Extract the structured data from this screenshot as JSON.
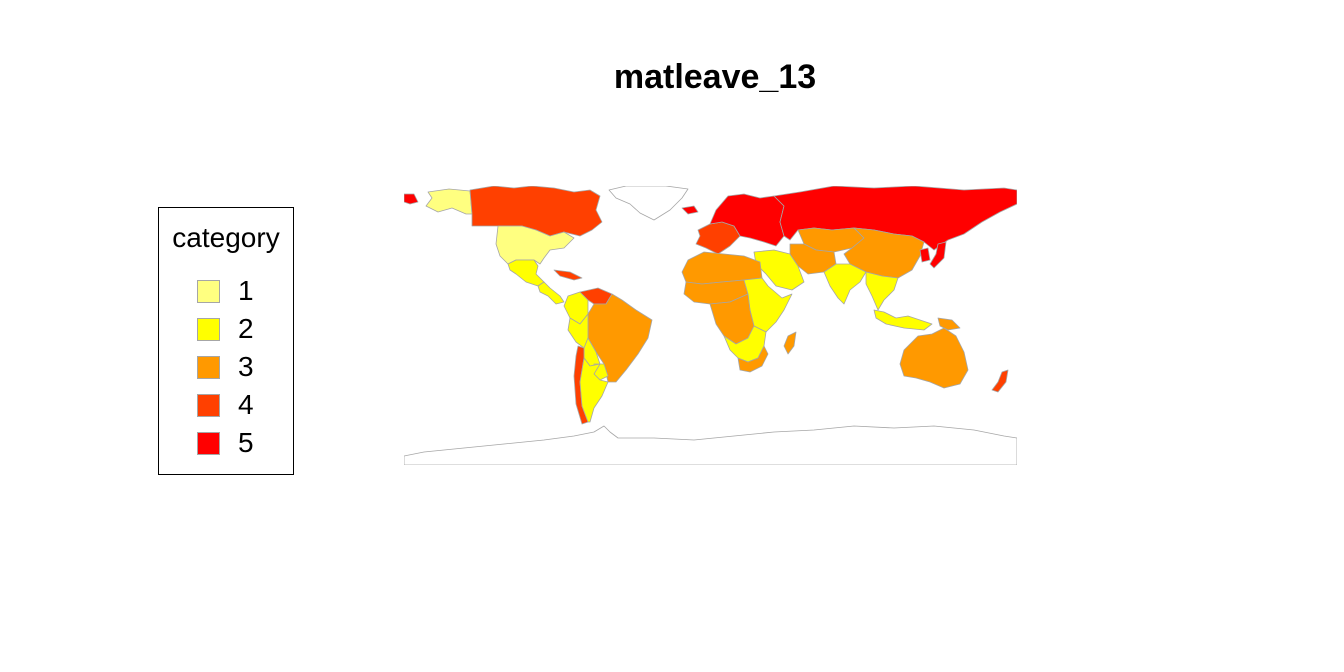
{
  "title": "matleave_13",
  "legend": {
    "title": "category",
    "items": [
      {
        "label": "1",
        "color": "#FFFF80"
      },
      {
        "label": "2",
        "color": "#FFFF00"
      },
      {
        "label": "3",
        "color": "#FF9900"
      },
      {
        "label": "4",
        "color": "#FF4000"
      },
      {
        "label": "5",
        "color": "#FF0000"
      }
    ]
  },
  "map_data": {
    "type": "choropleth",
    "projection": "equirectangular",
    "border_color": "#A6A6A6",
    "no_data_color": "#FFFFFF",
    "regions": [
      {
        "name": "greenland",
        "category": null
      },
      {
        "name": "alaska",
        "category": 1
      },
      {
        "name": "canada",
        "category": 4
      },
      {
        "name": "usa",
        "category": 1
      },
      {
        "name": "mexico",
        "category": 2
      },
      {
        "name": "central-america",
        "category": 2
      },
      {
        "name": "caribbean",
        "category": 4
      },
      {
        "name": "venezuela",
        "category": 4
      },
      {
        "name": "colombia",
        "category": 2
      },
      {
        "name": "brazil",
        "category": 3
      },
      {
        "name": "peru",
        "category": 2
      },
      {
        "name": "bolivia",
        "category": 2
      },
      {
        "name": "paraguay",
        "category": 2
      },
      {
        "name": "chile",
        "category": 4
      },
      {
        "name": "argentina",
        "category": 2
      },
      {
        "name": "iceland",
        "category": 5
      },
      {
        "name": "western-europe",
        "category": 4
      },
      {
        "name": "northern-europe",
        "category": 5
      },
      {
        "name": "russia",
        "category": 5
      },
      {
        "name": "kazakhstan",
        "category": 3
      },
      {
        "name": "china",
        "category": 3
      },
      {
        "name": "japan",
        "category": 5
      },
      {
        "name": "korea",
        "category": 5
      },
      {
        "name": "middle-east",
        "category": 2
      },
      {
        "name": "iran",
        "category": 3
      },
      {
        "name": "india",
        "category": 2
      },
      {
        "name": "southeast-asia",
        "category": 2
      },
      {
        "name": "indonesia",
        "category": 2
      },
      {
        "name": "papua-new-guinea",
        "category": 3
      },
      {
        "name": "north-africa",
        "category": 3
      },
      {
        "name": "sahel",
        "category": 3
      },
      {
        "name": "east-africa",
        "category": 2
      },
      {
        "name": "central-africa",
        "category": 3
      },
      {
        "name": "southern-africa",
        "category": 2
      },
      {
        "name": "south-africa",
        "category": 3
      },
      {
        "name": "madagascar",
        "category": 3
      },
      {
        "name": "australia",
        "category": 3
      },
      {
        "name": "new-zealand",
        "category": 4
      },
      {
        "name": "antarctica",
        "category": null
      }
    ]
  }
}
